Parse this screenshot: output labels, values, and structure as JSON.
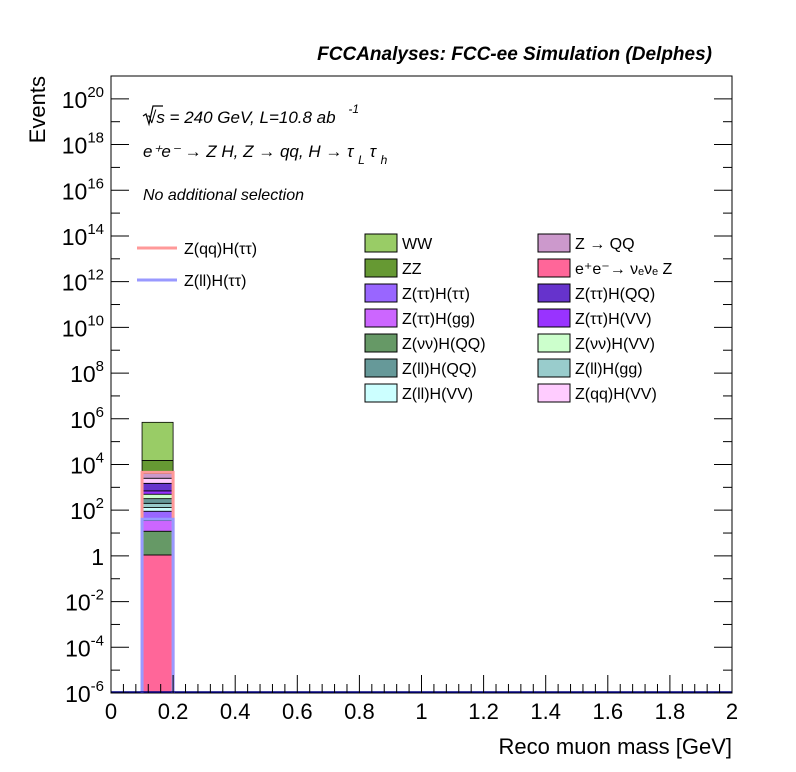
{
  "header": {
    "title": "FCCAnalyses: FCC-ee Simulation (Delphes)"
  },
  "labels": {
    "energy": "√s = 240 GeV, L=10.8 ab",
    "energy_exp": "-1",
    "process": "e⁺e⁻ → Z H, Z → qq, H → τ",
    "process_sub1": "L",
    "process_tau2": "τ",
    "process_sub2": "h",
    "selection": "No additional selection"
  },
  "colors": {
    "WW": "#99cc66",
    "ZZ": "#669933",
    "Z_QQ": "#cc99cc",
    "eeZ": "#ff6699",
    "Ztautau_Htautau": "#9966ff",
    "Ztautau_HQQ": "#6633cc",
    "Ztautau_Hgg": "#cc66ff",
    "Ztautau_HVV": "#9933ff",
    "Znunu_HQQ": "#669966",
    "Znunu_HVV": "#ccffcc",
    "Zll_HQQ": "#669999",
    "Zll_Hgg": "#99cccc",
    "Zll_HVV": "#ccffff",
    "Zqq_HVV": "#ffccff",
    "signal_qq": "#ff9999",
    "signal_ll": "#9999ff",
    "axis": "#000000"
  },
  "chart_data": {
    "type": "bar",
    "stacked": true,
    "log_y": true,
    "xlabel": "Reco muon mass [GeV]",
    "ylabel": "Events",
    "xlim": [
      0,
      2
    ],
    "ylim": [
      1e-06,
      1e+21
    ],
    "x_ticks": [
      "0",
      "0.2",
      "0.4",
      "0.6",
      "0.8",
      "1",
      "1.2",
      "1.4",
      "1.6",
      "1.8",
      "2"
    ],
    "y_ticks": [
      {
        "base": "10",
        "exp": "-6",
        "value": 1e-06
      },
      {
        "base": "10",
        "exp": "-4",
        "value": 0.0001
      },
      {
        "base": "10",
        "exp": "-2",
        "value": 0.01
      },
      {
        "base": "1",
        "exp": "",
        "value": 1
      },
      {
        "base": "10",
        "exp": "2",
        "value": 100.0
      },
      {
        "base": "10",
        "exp": "4",
        "value": 10000.0
      },
      {
        "base": "10",
        "exp": "6",
        "value": 1000000.0
      },
      {
        "base": "10",
        "exp": "8",
        "value": 100000000.0
      },
      {
        "base": "10",
        "exp": "10",
        "value": 10000000000.0
      },
      {
        "base": "10",
        "exp": "12",
        "value": 1000000000000.0
      },
      {
        "base": "10",
        "exp": "14",
        "value": 100000000000000.0
      },
      {
        "base": "10",
        "exp": "16",
        "value": 1e+16
      },
      {
        "base": "10",
        "exp": "18",
        "value": 1e+18
      },
      {
        "base": "10",
        "exp": "20",
        "value": 1e+20
      }
    ],
    "bin": [
      0.1,
      0.2
    ],
    "stack": [
      {
        "name": "eeZ",
        "color": "#ff6699",
        "top": 1.1
      },
      {
        "name": "Znunu_HQQ",
        "color": "#669966",
        "top": 12
      },
      {
        "name": "Ztautau_Hgg",
        "color": "#cc66ff",
        "top": 35
      },
      {
        "name": "Ztautau_Htautau",
        "color": "#9966ff",
        "top": 90
      },
      {
        "name": "Zll_HVV",
        "color": "#ccffff",
        "top": 130
      },
      {
        "name": "Zll_Hgg",
        "color": "#99cccc",
        "top": 200
      },
      {
        "name": "Zll_HQQ",
        "color": "#669999",
        "top": 320
      },
      {
        "name": "Znunu_HVV",
        "color": "#ccffcc",
        "top": 500
      },
      {
        "name": "Ztautau_HVV",
        "color": "#9933ff",
        "top": 700
      },
      {
        "name": "Ztautau_HQQ",
        "color": "#6633cc",
        "top": 1500
      },
      {
        "name": "Zqq_HVV",
        "color": "#ffccff",
        "top": 2500
      },
      {
        "name": "Z_QQ",
        "color": "#cc99cc",
        "top": 4000
      },
      {
        "name": "ZZ",
        "color": "#669933",
        "top": 15000
      },
      {
        "name": "WW",
        "color": "#99cc66",
        "top": 700000
      }
    ],
    "signals": [
      {
        "name": "Z(qq)H(ττ)",
        "color": "#ff9999",
        "value": 4500
      },
      {
        "name": "Z(ll)H(ττ)",
        "color": "#9999ff",
        "value": 40
      }
    ],
    "legend_signals": [
      "Z(qq)H(ττ)",
      "Z(ll)H(ττ)"
    ],
    "legend_backgrounds": [
      {
        "label": "WW",
        "color": "#99cc66"
      },
      {
        "label": "Z → QQ",
        "color": "#cc99cc"
      },
      {
        "label": "ZZ",
        "color": "#669933"
      },
      {
        "label": "e⁺e⁻→ νₑνₑ Z",
        "color": "#ff6699"
      },
      {
        "label": "Z(ττ)H(ττ)",
        "color": "#9966ff"
      },
      {
        "label": "Z(ττ)H(QQ)",
        "color": "#6633cc"
      },
      {
        "label": "Z(ττ)H(gg)",
        "color": "#cc66ff"
      },
      {
        "label": "Z(ττ)H(VV)",
        "color": "#9933ff"
      },
      {
        "label": "Z(νν)H(QQ)",
        "color": "#669966"
      },
      {
        "label": "Z(νν)H(VV)",
        "color": "#ccffcc"
      },
      {
        "label": "Z(ll)H(QQ)",
        "color": "#669999"
      },
      {
        "label": "Z(ll)H(gg)",
        "color": "#99cccc"
      },
      {
        "label": "Z(ll)H(VV)",
        "color": "#ccffff"
      },
      {
        "label": "Z(qq)H(VV)",
        "color": "#ffccff"
      }
    ],
    "legend_placement": "top-right"
  }
}
